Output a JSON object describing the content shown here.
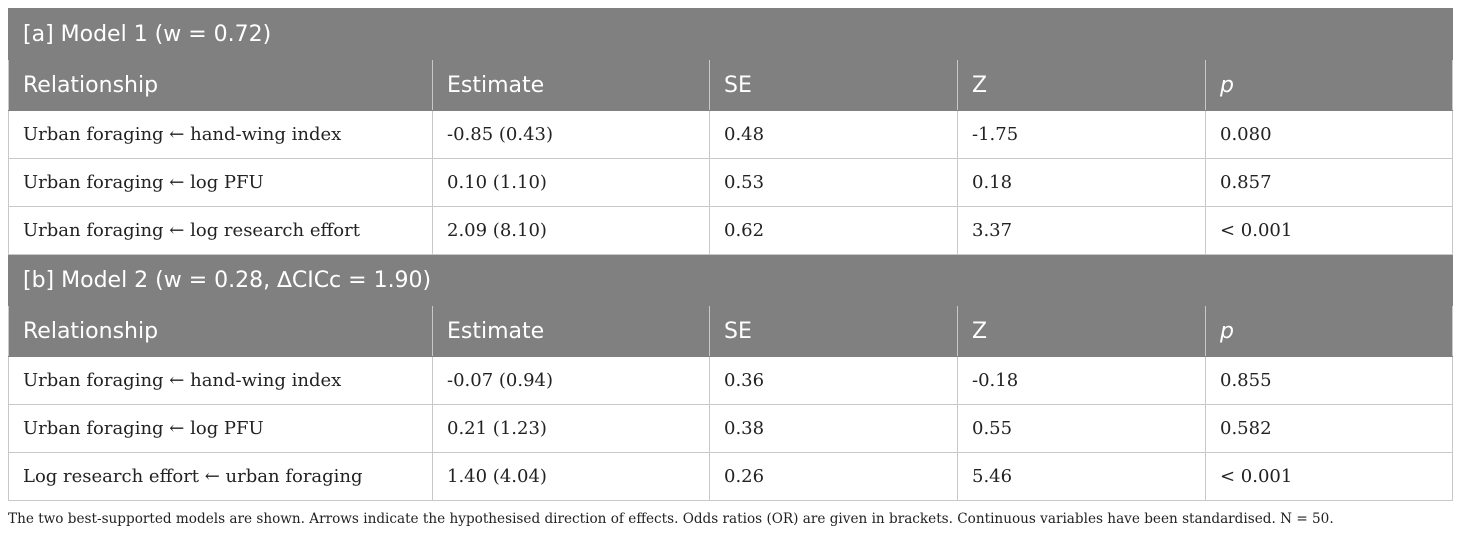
{
  "models": [
    {
      "title": "[a] Model 1 (w = 0.72)",
      "columns": [
        "Relationship",
        "Estimate",
        "SE",
        "Z",
        "p"
      ],
      "rows": [
        [
          "Urban foraging ← hand-wing index",
          "-0.85 (0.43)",
          "0.48",
          "-1.75",
          "0.080"
        ],
        [
          "Urban foraging ← log PFU",
          "0.10 (1.10)",
          "0.53",
          "0.18",
          "0.857"
        ],
        [
          "Urban foraging ← log research effort",
          "2.09 (8.10)",
          "0.62",
          "3.37",
          "< 0.001"
        ]
      ]
    },
    {
      "title": "[b] Model 2 (w = 0.28, ∆CICc = 1.90)",
      "columns": [
        "Relationship",
        "Estimate",
        "SE",
        "Z",
        "p"
      ],
      "rows": [
        [
          "Urban foraging ← hand-wing index",
          "-0.07 (0.94)",
          "0.36",
          "-0.18",
          "0.855"
        ],
        [
          "Urban foraging ← log PFU",
          "0.21 (1.23)",
          "0.38",
          "0.55",
          "0.582"
        ],
        [
          "Log research effort ← urban foraging",
          "1.40 (4.04)",
          "0.26",
          "5.46",
          "< 0.001"
        ]
      ]
    }
  ],
  "footnote": "The two best-supported models are shown. Arrows indicate the hypothesised direction of effects. Odds ratios (OR) are given in brackets. Continuous variables have been standardised. N = 50.",
  "colors": {
    "header_bg": "#808080",
    "header_text": "#ffffff",
    "grid": "#c8c8c8"
  }
}
